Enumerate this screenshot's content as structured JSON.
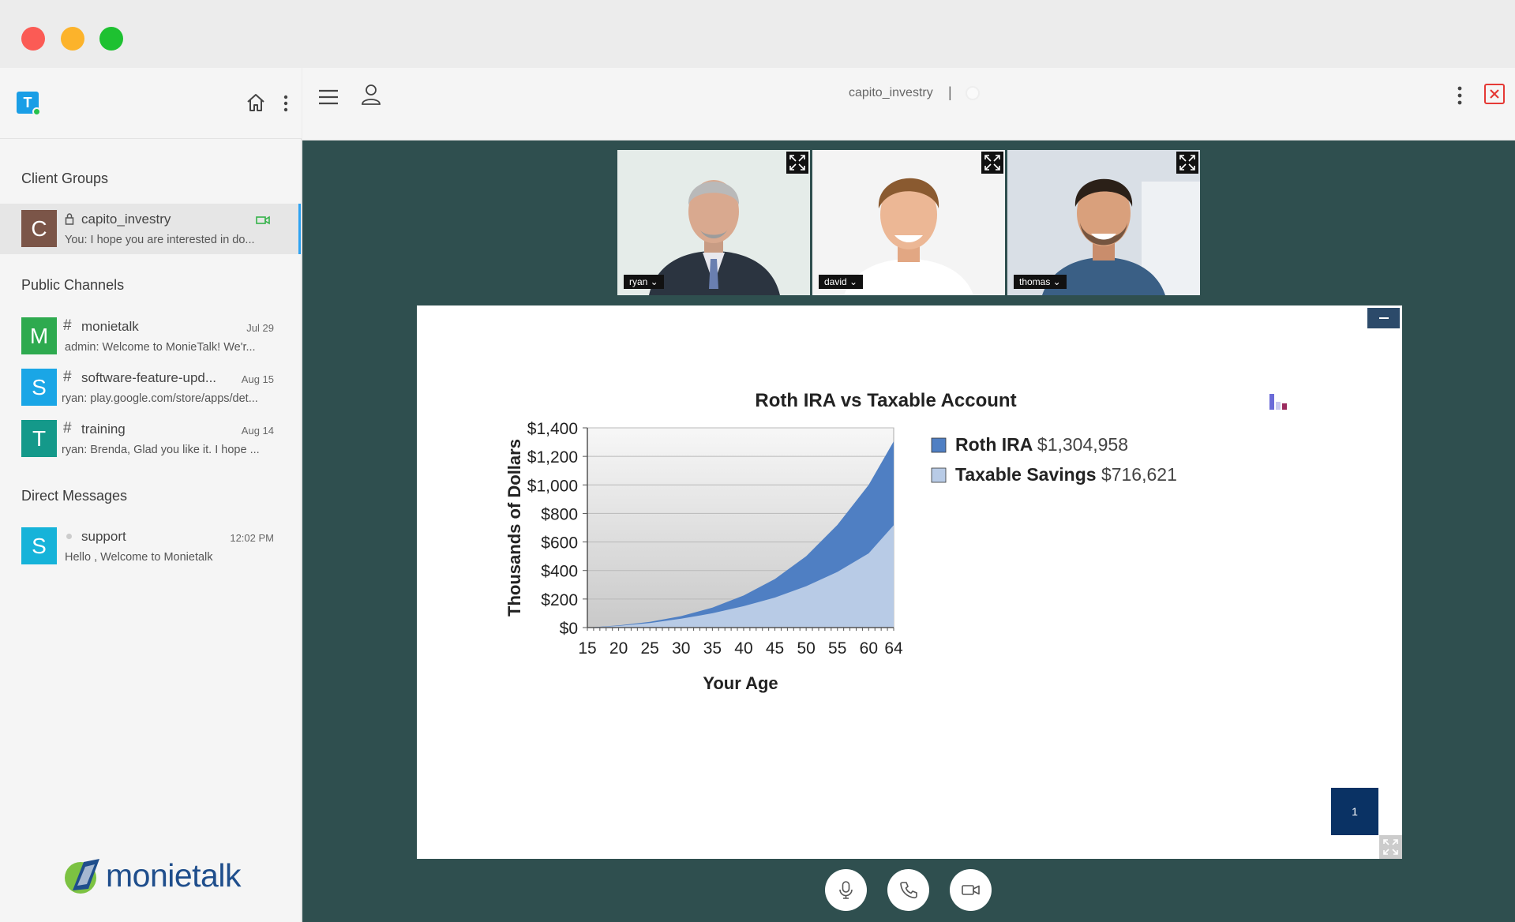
{
  "window": {
    "controls": [
      "close",
      "minimize",
      "maximize"
    ]
  },
  "sidebar": {
    "app_logo_letter": "T",
    "sections": {
      "client_groups": "Client Groups",
      "public_channels": "Public Channels",
      "direct_messages": "Direct Messages"
    },
    "client_groups": [
      {
        "avatar": "C",
        "avatar_color": "#7b5548",
        "name": "capito_investry",
        "preview": "You: I hope you are interested in do...",
        "icons": [
          "lock-icon",
          "video-icon"
        ]
      }
    ],
    "channels": [
      {
        "avatar": "M",
        "avatar_color": "#2eaa4f",
        "prefix": "#",
        "name": "monietalk",
        "date": "Jul 29",
        "preview": "admin: Welcome to MonieTalk! We'r..."
      },
      {
        "avatar": "S",
        "avatar_color": "#1aa6e6",
        "prefix": "#",
        "name": "software-feature-upd...",
        "date": "Aug 15",
        "preview": "ryan: play.google.com/store/apps/det..."
      },
      {
        "avatar": "T",
        "avatar_color": "#14998a",
        "prefix": "#",
        "name": "training",
        "date": "Aug 14",
        "preview": "ryan: Brenda, Glad you like it. I hope ..."
      }
    ],
    "direct_messages": [
      {
        "avatar": "S",
        "avatar_color": "#16b3d9",
        "name": "support",
        "date": "12:02 PM",
        "preview": "Hello , Welcome to Monietalk"
      }
    ],
    "brand_name": "monietalk"
  },
  "topbar": {
    "room_name": "capito_investry",
    "separator": "|"
  },
  "participants": [
    {
      "name": "ryan",
      "tag": "ryan ⌄"
    },
    {
      "name": "david",
      "tag": "david ⌄"
    },
    {
      "name": "thomas",
      "tag": "thomas ⌄"
    }
  ],
  "slide": {
    "page_number": "1"
  },
  "controls": [
    "microphone",
    "phone",
    "camera"
  ],
  "colors": {
    "stage_bg": "#2f4f4f",
    "close_red": "#e53935",
    "page_btn": "#0a3264"
  },
  "chart_data": {
    "type": "area",
    "title": "Roth IRA vs Taxable Account",
    "xlabel": "Your Age",
    "ylabel": "Thousands of Dollars",
    "x_ticks": [
      "15",
      "20",
      "25",
      "30",
      "35",
      "40",
      "45",
      "50",
      "55",
      "60",
      "64"
    ],
    "y_ticks": [
      "$1,400",
      "$1,200",
      "$1,000",
      "$800",
      "$600",
      "$400",
      "$200",
      "$0"
    ],
    "xlim": [
      15,
      64
    ],
    "ylim": [
      0,
      1400
    ],
    "legend_position": "right",
    "grid": true,
    "x": [
      15,
      20,
      25,
      30,
      35,
      40,
      45,
      50,
      55,
      60,
      64
    ],
    "series": [
      {
        "name": "Roth IRA",
        "legend_value": "$1,304,958",
        "color": "#4f7fc3",
        "values": [
          0,
          15,
          40,
          80,
          140,
          225,
          340,
          500,
          720,
          1000,
          1305
        ]
      },
      {
        "name": "Taxable Savings",
        "legend_value": "$716,621",
        "color": "#b8cbe6",
        "values": [
          0,
          12,
          32,
          62,
          100,
          150,
          210,
          290,
          390,
          520,
          717
        ]
      }
    ]
  }
}
